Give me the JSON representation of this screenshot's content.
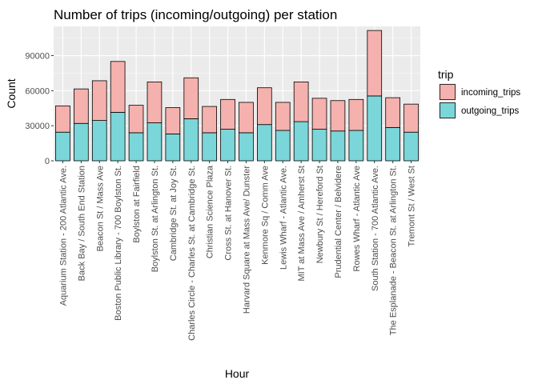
{
  "chart_data": {
    "type": "bar",
    "stacked": true,
    "title": "Number of trips (incoming/outgoing) per station",
    "xlabel": "Hour",
    "ylabel": "Count",
    "ylim": [
      0,
      115000
    ],
    "yticks": [
      0,
      30000,
      60000,
      90000
    ],
    "grid": true,
    "legend": {
      "title": "trip",
      "position": "right"
    },
    "categories": [
      "Aquarium Station - 200 Atlantic Ave.",
      "Back Bay / South End Station",
      "Beacon St / Mass Ave",
      "Boston Public Library - 700 Boylston St.",
      "Boylston at Fairfield",
      "Boylston St. at Arlington St.",
      "Cambridge St. at Joy St.",
      "Charles Circle - Charles St. at Cambridge St.",
      "Christian Science Plaza",
      "Cross St. at Hanover St.",
      "Harvard Square at Mass Ave/ Dunster",
      "Kenmore Sq / Comm Ave",
      "Lewis Wharf - Atlantic Ave.",
      "MIT at Mass Ave / Amherst St",
      "Newbury St / Hereford St",
      "Prudential Center / Belvidere",
      "Rowes Wharf - Atlantic Ave",
      "South Station - 700 Atlantic Ave.",
      "The Esplanade - Beacon St. at Arlington St.",
      "Tremont St / West St"
    ],
    "series": [
      {
        "name": "outgoing_trips",
        "color": "#7ad6d9",
        "values": [
          24500,
          32000,
          34500,
          41500,
          24000,
          32500,
          23000,
          36000,
          24000,
          27000,
          24000,
          31000,
          26000,
          33500,
          27000,
          25500,
          26000,
          55500,
          28500,
          24500
        ]
      },
      {
        "name": "incoming_trips",
        "color": "#f5b1ad",
        "values": [
          22500,
          29500,
          34000,
          43500,
          23500,
          35000,
          22500,
          35000,
          22500,
          25500,
          26000,
          31500,
          24000,
          34000,
          26500,
          26000,
          26500,
          56000,
          25500,
          24000
        ]
      }
    ]
  }
}
